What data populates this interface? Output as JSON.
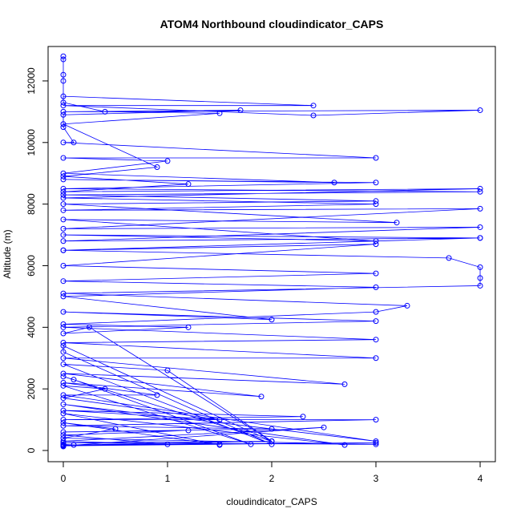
{
  "chart_data": {
    "type": "line",
    "title": "ATOM4 Northbound cloudindicator_CAPS",
    "xlabel": "cloudindicator_CAPS",
    "ylabel": "Altitude (m)",
    "x": [
      0,
      0,
      0.1,
      2,
      0,
      3,
      0,
      0.5,
      0,
      1.5,
      0,
      2.7,
      0,
      3,
      0,
      0.9,
      0,
      1.9,
      0,
      2.7,
      0,
      3,
      0,
      3,
      0,
      3,
      0,
      2,
      0,
      3,
      0,
      3,
      0,
      3,
      0,
      4,
      0,
      3,
      0,
      3.2,
      0,
      3,
      0,
      4,
      0,
      3,
      0,
      2.6,
      0,
      1,
      0,
      3,
      0,
      0.1,
      0,
      0,
      1.7,
      0,
      4,
      2.4,
      0,
      2.4,
      0,
      0,
      0,
      0,
      0,
      0,
      0.4,
      1.5,
      0,
      0.9,
      0,
      1.2,
      0,
      4,
      0,
      3,
      0,
      4,
      0,
      4,
      0,
      4,
      0,
      3.7,
      4,
      4,
      4,
      0,
      3.3,
      3,
      0,
      1.2,
      0,
      0.25,
      2,
      0,
      0,
      2,
      0,
      1,
      2,
      0,
      0.1,
      1.8,
      0,
      0.4,
      0,
      1.5,
      0,
      2.3,
      0,
      3,
      0,
      2,
      0,
      1.2,
      0,
      1,
      0,
      2.5,
      0,
      1.5,
      0,
      3,
      0
    ],
    "series": [
      {
        "color": "#0000ff",
        "values": [
          130,
          200,
          180,
          300,
          250,
          200,
          400,
          700,
          900,
          180,
          1200,
          180,
          1500,
          300,
          1800,
          1800,
          2200,
          1750,
          2500,
          2150,
          3000,
          3000,
          3500,
          3600,
          4000,
          4200,
          4500,
          4250,
          5000,
          5300,
          5500,
          5750,
          6000,
          6700,
          6500,
          6900,
          7000,
          6800,
          7500,
          7400,
          8000,
          8100,
          8300,
          8400,
          8500,
          8700,
          8800,
          8700,
          9000,
          9400,
          9500,
          9500,
          10000,
          10000,
          10500,
          10900,
          11050,
          11000,
          11050,
          10880,
          11200,
          11200,
          11500,
          12000,
          12200,
          12800,
          12700,
          11300,
          11000,
          10950,
          10600,
          9200,
          8900,
          8650,
          8400,
          8500,
          8200,
          8000,
          7800,
          7850,
          7200,
          7250,
          6800,
          6900,
          6500,
          6250,
          5950,
          5600,
          5350,
          5100,
          4700,
          4500,
          4100,
          4000,
          3800,
          4000,
          300,
          3400,
          3200,
          200,
          2800,
          2600,
          300,
          2400,
          2300,
          200,
          2100,
          2000,
          1700,
          1000,
          1300,
          1100,
          1000,
          1000,
          800,
          700,
          600,
          650,
          500,
          200,
          300,
          750,
          150,
          200,
          180,
          250,
          160
        ]
      }
    ],
    "xlim": [
      -0.146,
      4.146
    ],
    "ylim": [
      -364,
      13118
    ],
    "xticks": [
      0,
      1,
      2,
      3,
      4
    ],
    "yticks": [
      0,
      2000,
      4000,
      6000,
      8000,
      10000,
      12000
    ]
  }
}
